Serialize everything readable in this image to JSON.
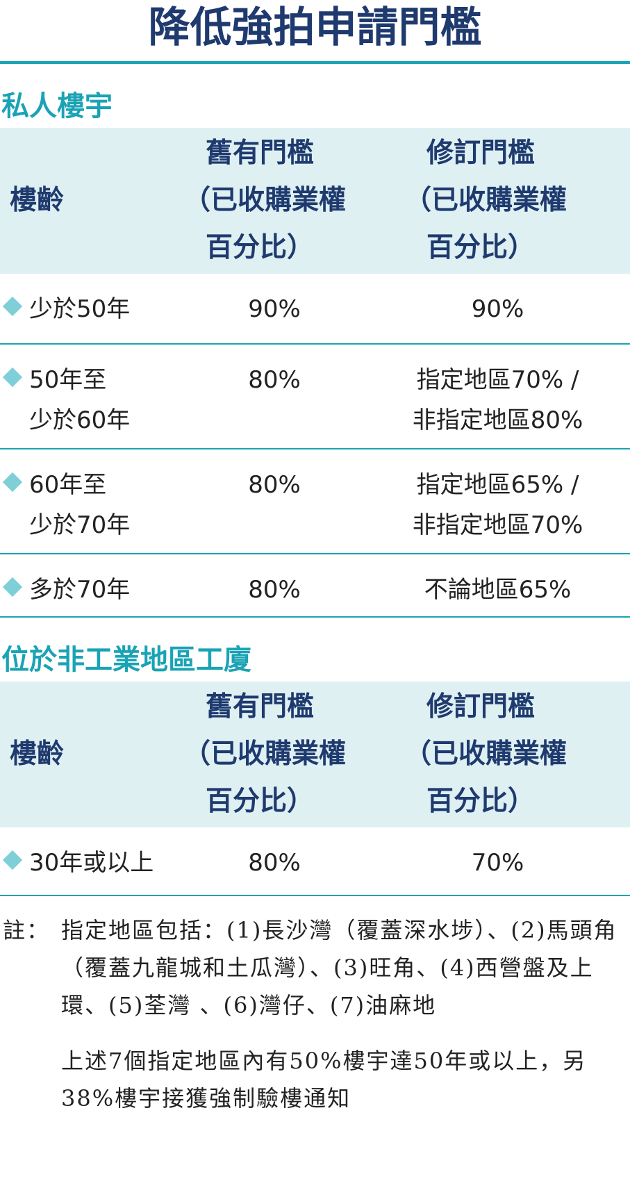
{
  "title": "降低強拍申請門檻",
  "sections": [
    {
      "heading": "私人樓宇",
      "header": [
        [
          "樓齡"
        ],
        [
          "舊有門檻",
          "（已收購業權",
          "百分比）"
        ],
        [
          "修訂門檻",
          "（已收購業權",
          "百分比）"
        ]
      ],
      "rows": [
        [
          [
            "少於50年"
          ],
          [
            "90%"
          ],
          [
            "90%"
          ]
        ],
        [
          [
            "50年至",
            "少於60年"
          ],
          [
            "80%"
          ],
          [
            "指定地區70% /",
            "非指定地區80%"
          ]
        ],
        [
          [
            "60年至",
            "少於70年"
          ],
          [
            "80%"
          ],
          [
            "指定地區65% /",
            "非指定地區70%"
          ]
        ],
        [
          [
            "多於70年"
          ],
          [
            "80%"
          ],
          [
            "不論地區65%"
          ]
        ]
      ]
    },
    {
      "heading": "位於非工業地區工廈",
      "header": [
        [
          "樓齡"
        ],
        [
          "舊有門檻",
          "（已收購業權",
          "百分比）"
        ],
        [
          "修訂門檻",
          "（已收購業權",
          "百分比）"
        ]
      ],
      "rows": [
        [
          [
            "30年或以上"
          ],
          [
            "80%"
          ],
          [
            "70%"
          ]
        ]
      ]
    }
  ],
  "notes": {
    "label": "註：",
    "paragraphs": [
      "指定地區包括：(1)長沙灣（覆蓋深水埗）、(2)馬頭角（覆蓋九龍城和土瓜灣）、(3)旺角、(4)西營盤及上環、(5)荃灣 、(6)灣仔、(7)油麻地",
      "上述7個指定地區內有50%樓宇達50年或以上，另38%樓宇接獲強制驗樓通知"
    ]
  }
}
